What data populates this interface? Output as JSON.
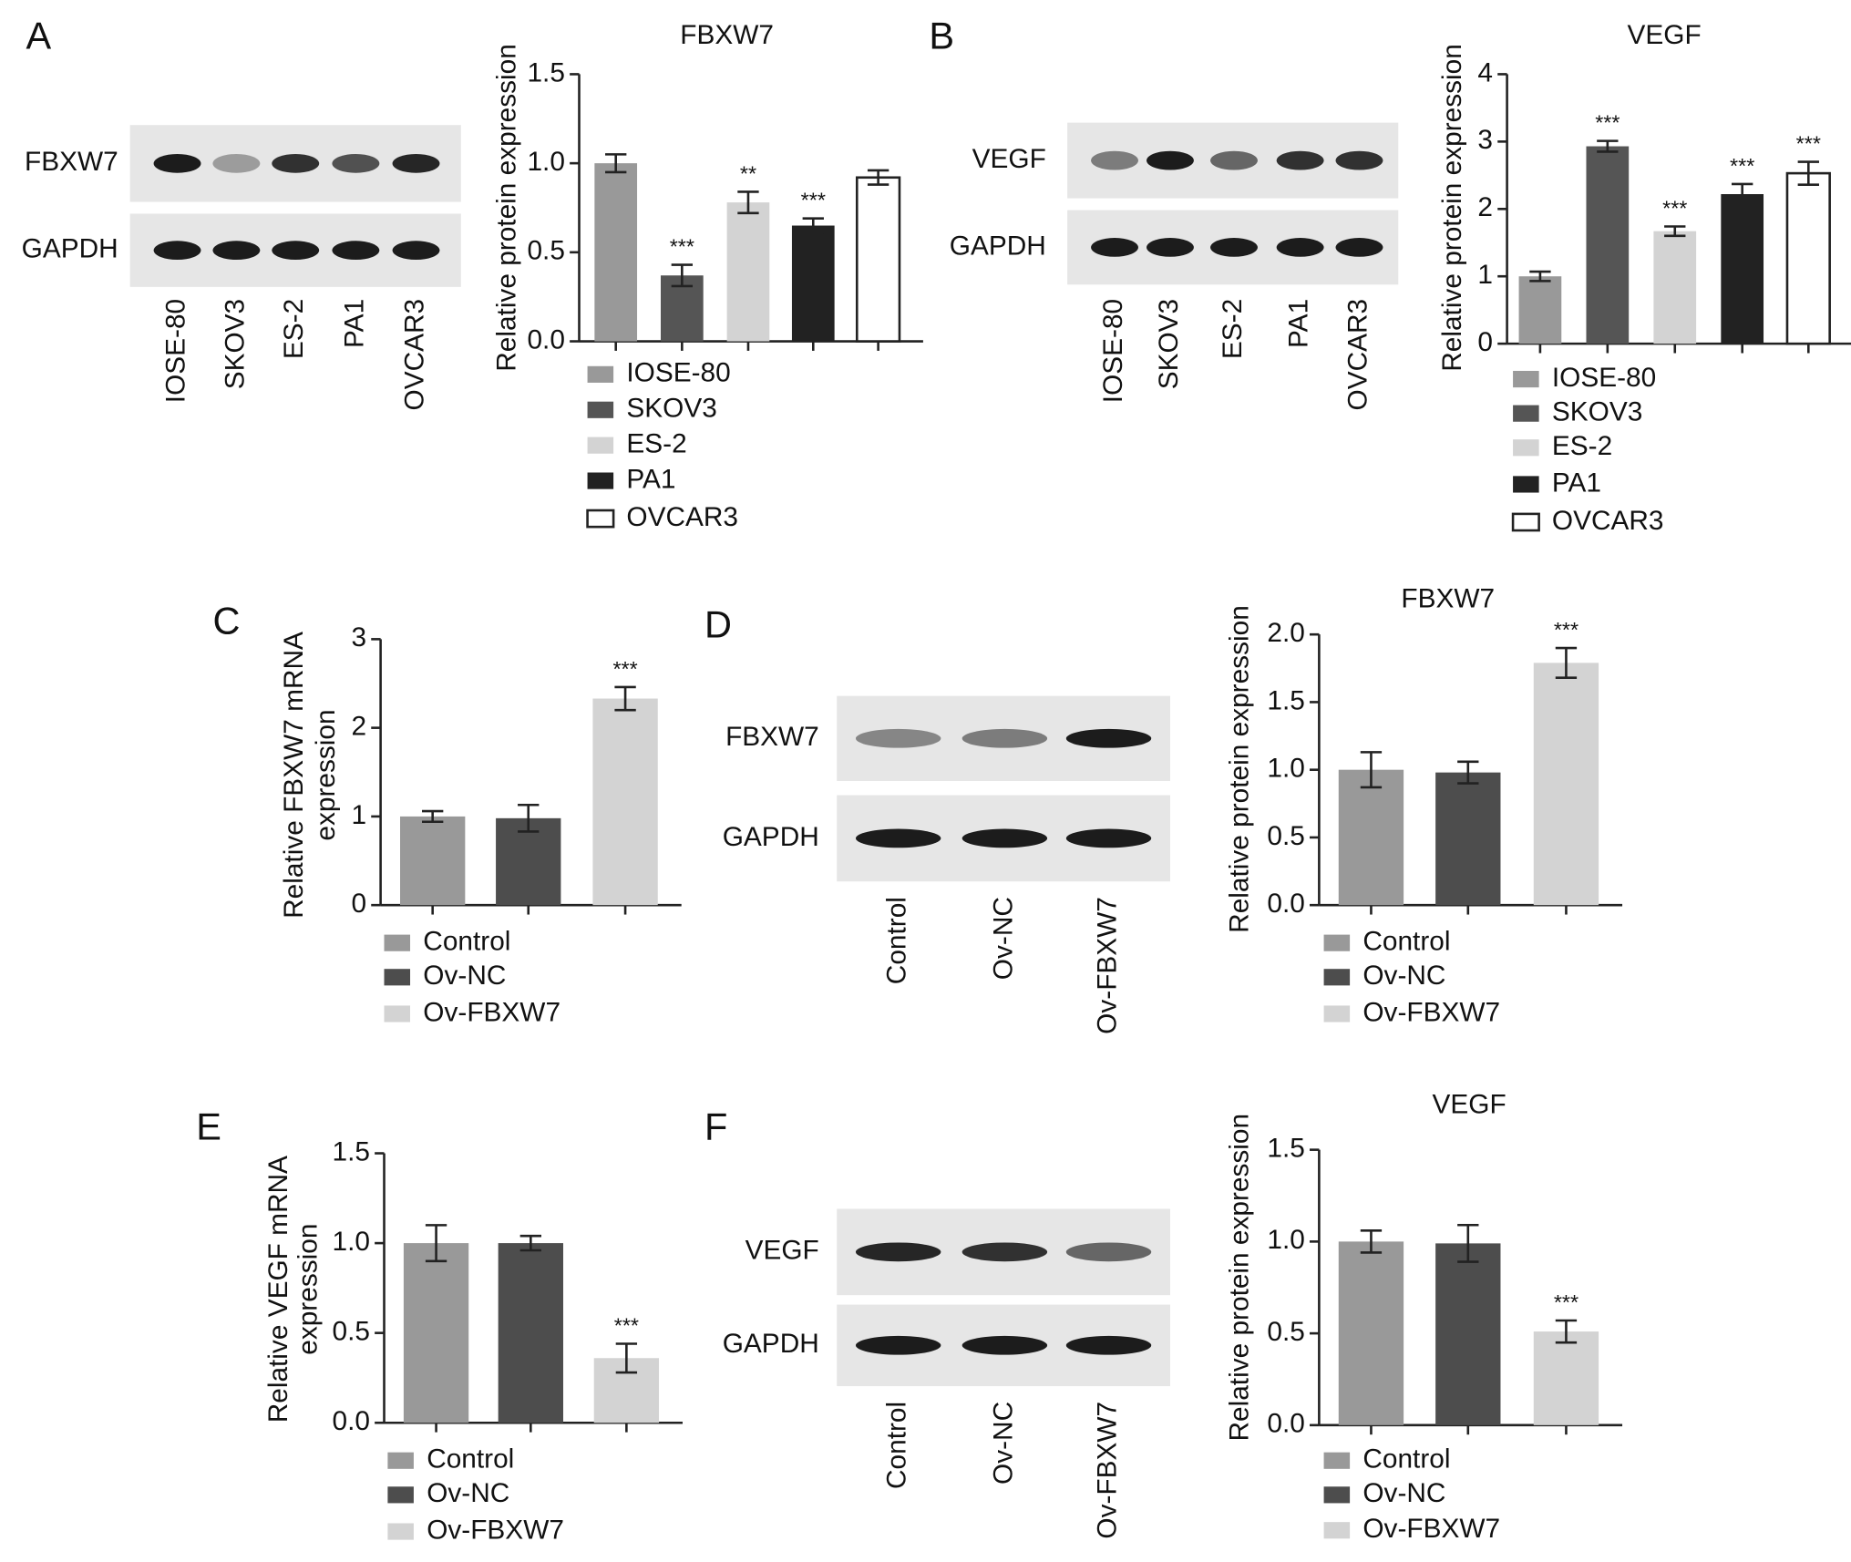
{
  "panel_labels": [
    "A",
    "B",
    "C",
    "D",
    "E",
    "F"
  ],
  "blots": [
    {
      "rows": [
        "FBXW7",
        "GAPDH"
      ],
      "lanes": [
        "IOSE-80",
        "SKOV3",
        "ES-2",
        "PA1",
        "OVCAR3"
      ]
    },
    {
      "rows": [
        "VEGF",
        "GAPDH"
      ],
      "lanes": [
        "IOSE-80",
        "SKOV3",
        "ES-2",
        "PA1",
        "OVCAR3"
      ]
    },
    {
      "rows": [
        "FBXW7",
        "GAPDH"
      ],
      "lanes": [
        "Control",
        "Ov-NC",
        "Ov-FBXW7"
      ]
    },
    {
      "rows": [
        "VEGF",
        "GAPDH"
      ],
      "lanes": [
        "Control",
        "Ov-NC",
        "Ov-FBXW7"
      ]
    }
  ],
  "chart_data": [
    {
      "type": "bar",
      "title": "FBXW7",
      "ylabel": "Relative protein expression",
      "categories": [
        "IOSE-80",
        "SKOV3",
        "ES-2",
        "PA1",
        "OVCAR3"
      ],
      "values": [
        1.0,
        0.37,
        0.78,
        0.65,
        0.92
      ],
      "errors": [
        0.05,
        0.06,
        0.06,
        0.04,
        0.04
      ],
      "colors": [
        "#999999",
        "#555555",
        "#d3d3d3",
        "#222222",
        "#ffffff"
      ],
      "annotations": [
        null,
        "***",
        "**",
        "***",
        null
      ],
      "ylim": [
        0,
        1.5
      ],
      "yticks": [
        {
          "value": 0,
          "label": "0.0"
        },
        0.5,
        {
          "value": 1,
          "label": "1.0"
        },
        1.5
      ]
    },
    {
      "type": "bar",
      "title": "VEGF",
      "ylabel": "Relative protein expression",
      "categories": [
        "IOSE-80",
        "SKOV3",
        "ES-2",
        "PA1",
        "OVCAR3"
      ],
      "values": [
        1.0,
        2.93,
        1.67,
        2.22,
        2.53
      ],
      "errors": [
        0.07,
        0.08,
        0.07,
        0.15,
        0.17
      ],
      "colors": [
        "#999999",
        "#555555",
        "#d3d3d3",
        "#222222",
        "#ffffff"
      ],
      "annotations": [
        null,
        "***",
        "***",
        "***",
        "***"
      ],
      "ylim": [
        0,
        4
      ],
      "yticks": [
        0,
        1,
        2,
        3,
        4
      ]
    },
    {
      "type": "bar",
      "ylabel": [
        "Relative FBXW7 mRNA",
        "expression"
      ],
      "categories": [
        "Control",
        "Ov-NC",
        "Ov-FBXW7"
      ],
      "values": [
        1.0,
        0.98,
        2.33
      ],
      "errors": [
        0.06,
        0.15,
        0.13
      ],
      "colors": [
        "#999999",
        "#4d4d4d",
        "#d3d3d3"
      ],
      "annotations": [
        null,
        null,
        "***"
      ],
      "ylim": [
        0,
        3
      ],
      "yticks": [
        0,
        1,
        2,
        3
      ]
    },
    {
      "type": "bar",
      "title": "FBXW7",
      "ylabel": "Relative protein expression",
      "categories": [
        "Control",
        "Ov-NC",
        "Ov-FBXW7"
      ],
      "values": [
        1.0,
        0.98,
        1.79
      ],
      "errors": [
        0.13,
        0.08,
        0.11
      ],
      "colors": [
        "#999999",
        "#4d4d4d",
        "#d3d3d3"
      ],
      "annotations": [
        null,
        null,
        "***"
      ],
      "ylim": [
        0,
        2
      ],
      "yticks": [
        {
          "value": 0,
          "label": "0.0"
        },
        0.5,
        {
          "value": 1,
          "label": "1.0"
        },
        1.5,
        {
          "value": 2,
          "label": "2.0"
        }
      ]
    },
    {
      "type": "bar",
      "ylabel": [
        "Relative VEGF mRNA",
        "expression"
      ],
      "categories": [
        "Control",
        "Ov-NC",
        "Ov-FBXW7"
      ],
      "values": [
        1.0,
        1.0,
        0.36
      ],
      "errors": [
        0.1,
        0.04,
        0.08
      ],
      "colors": [
        "#999999",
        "#4d4d4d",
        "#d3d3d3"
      ],
      "annotations": [
        null,
        null,
        "***"
      ],
      "ylim": [
        0,
        1.5
      ],
      "yticks": [
        {
          "value": 0,
          "label": "0.0"
        },
        0.5,
        {
          "value": 1,
          "label": "1.0"
        },
        1.5
      ]
    },
    {
      "type": "bar",
      "title": "VEGF",
      "ylabel": "Relative protein expression",
      "categories": [
        "Control",
        "Ov-NC",
        "Ov-FBXW7"
      ],
      "values": [
        1.0,
        0.99,
        0.51
      ],
      "errors": [
        0.06,
        0.1,
        0.06
      ],
      "colors": [
        "#999999",
        "#4d4d4d",
        "#d3d3d3"
      ],
      "annotations": [
        null,
        null,
        "***"
      ],
      "ylim": [
        0,
        1.5
      ],
      "yticks": [
        {
          "value": 0,
          "label": "0.0"
        },
        0.5,
        {
          "value": 1,
          "label": "1.0"
        },
        1.5
      ]
    }
  ]
}
